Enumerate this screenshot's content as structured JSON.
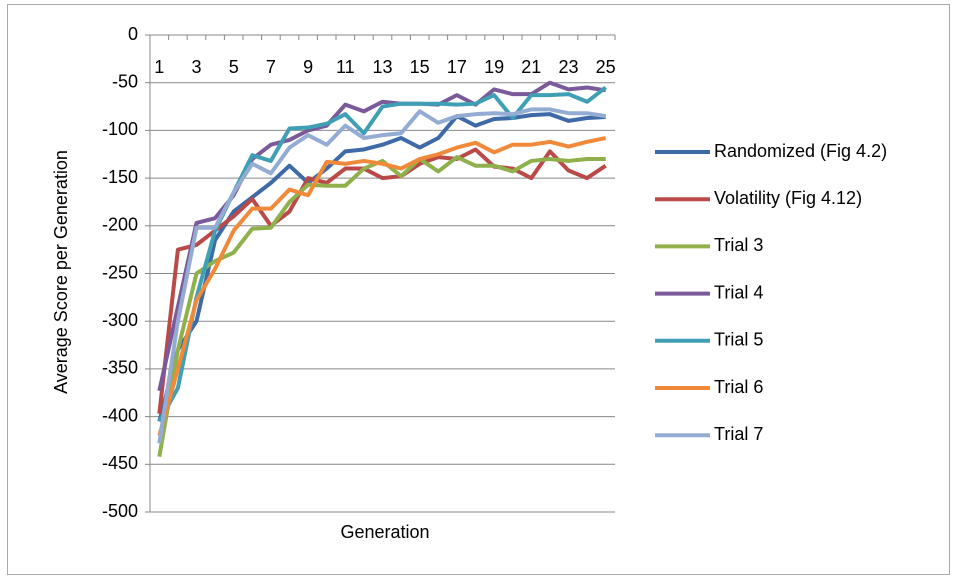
{
  "chart_data": {
    "type": "line",
    "y_label": "Average Score per Generation",
    "x_label": "Generation",
    "categories": [
      "1",
      null,
      "3",
      null,
      "5",
      null,
      "7",
      null,
      "9",
      null,
      "11",
      null,
      "13",
      null,
      "15",
      null,
      "17",
      null,
      "19",
      null,
      "21",
      null,
      "23",
      null,
      "25"
    ],
    "ylim": [
      -500,
      0
    ],
    "yticks": [
      0,
      -50,
      -100,
      -150,
      -200,
      -250,
      -300,
      -350,
      -400,
      -450,
      -500
    ],
    "grid": true,
    "legend": "right",
    "series": [
      {
        "name": "Randomized (Fig 4.2)",
        "color": "#3e6aa8",
        "values": [
          -405,
          -330,
          -300,
          -215,
          -185,
          -170,
          -155,
          -137,
          -155,
          -140,
          -122,
          -120,
          -115,
          -108,
          -118,
          -108,
          -85,
          -95,
          -88,
          -87,
          -84,
          -83,
          -90,
          -87,
          -86
        ]
      },
      {
        "name": "Volatility (Fig 4.12)",
        "color": "#b94a48",
        "values": [
          -397,
          -225,
          -220,
          -205,
          -190,
          -172,
          -200,
          -185,
          -150,
          -155,
          -140,
          -140,
          -150,
          -148,
          -135,
          -128,
          -130,
          -120,
          -138,
          -140,
          -150,
          -122,
          -142,
          -150,
          -137
        ]
      },
      {
        "name": "Trial 3",
        "color": "#8fb04b",
        "values": [
          -442,
          -330,
          -250,
          -237,
          -228,
          -203,
          -202,
          -175,
          -157,
          -158,
          -158,
          -140,
          -132,
          -148,
          -130,
          -143,
          -128,
          -137,
          -137,
          -143,
          -132,
          -130,
          -132,
          -130,
          -130
        ]
      },
      {
        "name": "Trial 4",
        "color": "#7a5a9a",
        "values": [
          -373,
          -285,
          -197,
          -192,
          -168,
          -130,
          -115,
          -110,
          -100,
          -95,
          -73,
          -80,
          -70,
          -72,
          -72,
          -73,
          -63,
          -73,
          -57,
          -62,
          -62,
          -50,
          -57,
          -55,
          -58
        ]
      },
      {
        "name": "Trial 5",
        "color": "#3fa0b5",
        "values": [
          -405,
          -370,
          -275,
          -205,
          -165,
          -126,
          -132,
          -98,
          -97,
          -93,
          -83,
          -103,
          -75,
          -72,
          -72,
          -72,
          -73,
          -72,
          -63,
          -87,
          -63,
          -63,
          -62,
          -70,
          -55
        ]
      },
      {
        "name": "Trial 6",
        "color": "#f08a3a",
        "values": [
          -420,
          -350,
          -278,
          -245,
          -205,
          -182,
          -182,
          -162,
          -168,
          -133,
          -135,
          -132,
          -135,
          -140,
          -130,
          -125,
          -118,
          -113,
          -123,
          -115,
          -115,
          -112,
          -117,
          -112,
          -108
        ]
      },
      {
        "name": "Trial 7",
        "color": "#94acd4",
        "values": [
          -428,
          -300,
          -202,
          -202,
          -165,
          -135,
          -145,
          -118,
          -105,
          -115,
          -95,
          -108,
          -105,
          -103,
          -80,
          -92,
          -85,
          -83,
          -82,
          -83,
          -78,
          -78,
          -82,
          -82,
          -85
        ]
      }
    ]
  }
}
